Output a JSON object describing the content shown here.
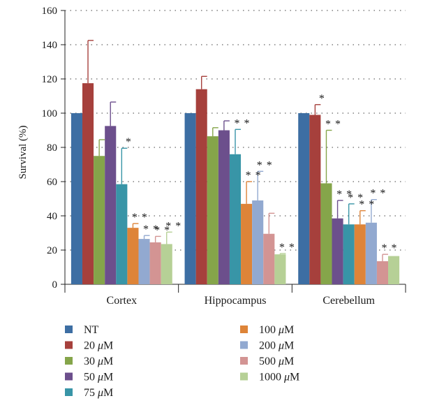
{
  "chart_data": {
    "type": "bar",
    "title": "",
    "xlabel": "",
    "ylabel": "Survival (%)",
    "ylim": [
      0,
      160
    ],
    "yticks": [
      "0",
      "20",
      "40",
      "60",
      "80",
      "100",
      "120",
      "140",
      "160"
    ],
    "grid": "dotted-horizontal",
    "legend_position": "bottom",
    "categories": [
      "Cortex",
      "Hippocampus",
      "Cerebellum"
    ],
    "series": [
      {
        "name": "NT",
        "color": "#3d6ea3",
        "values": [
          100,
          100,
          100
        ],
        "errors": [
          0,
          0,
          0
        ],
        "marks": [
          "",
          "",
          ""
        ]
      },
      {
        "name": "20 μM",
        "color": "#a6403c",
        "values": [
          117.5,
          114,
          99
        ],
        "errors": [
          25,
          7.5,
          6
        ],
        "marks": [
          "",
          "",
          "*"
        ]
      },
      {
        "name": "30 μM",
        "color": "#85a54a",
        "values": [
          75,
          86.5,
          59
        ],
        "errors": [
          9.5,
          5,
          31
        ],
        "marks": [
          "",
          "",
          "**"
        ]
      },
      {
        "name": "50 μM",
        "color": "#6c4f8c",
        "values": [
          92.5,
          90,
          38.5
        ],
        "errors": [
          14,
          5.5,
          10.5
        ],
        "marks": [
          "",
          "",
          "**"
        ]
      },
      {
        "name": "75 μM",
        "color": "#3895a7",
        "values": [
          58.5,
          76,
          35
        ],
        "errors": [
          21,
          14.5,
          12
        ],
        "marks": [
          "*",
          "**",
          "**"
        ]
      },
      {
        "name": "100 μM",
        "color": "#de8438",
        "values": [
          33,
          47,
          35
        ],
        "errors": [
          2.5,
          13,
          8
        ],
        "marks": [
          "**",
          "**",
          "**"
        ]
      },
      {
        "name": "200 μM",
        "color": "#92a9d0",
        "values": [
          26.5,
          49,
          36
        ],
        "errors": [
          2,
          17,
          13.5
        ],
        "marks": [
          "**",
          "**",
          "**"
        ]
      },
      {
        "name": "500 μM",
        "color": "#d39493",
        "values": [
          24.5,
          29.5,
          13.5
        ],
        "errors": [
          3.5,
          12,
          4
        ],
        "marks": [
          "**",
          "",
          "**"
        ]
      },
      {
        "name": "1000 μM",
        "color": "#b6d096",
        "values": [
          23.5,
          17.5,
          16.5
        ],
        "errors": [
          7,
          0.5,
          0
        ],
        "marks": [
          "**",
          "**",
          ""
        ]
      }
    ]
  }
}
